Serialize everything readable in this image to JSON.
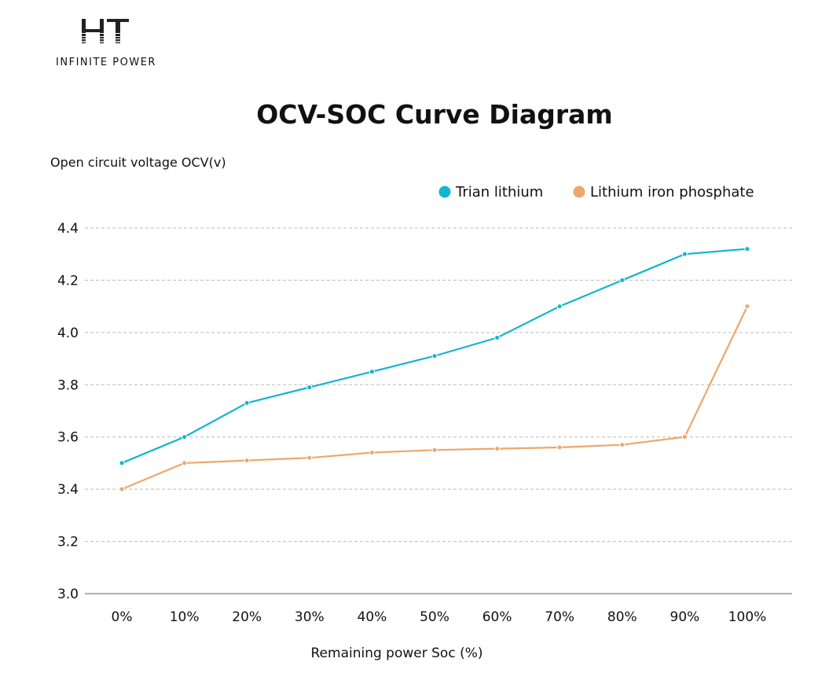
{
  "logo": {
    "mark": "HT",
    "tagline": "INFINITE POWER"
  },
  "chart_data": {
    "type": "line",
    "title": "OCV-SOC Curve Diagram",
    "ylabel": "Open circuit voltage OCV(v)",
    "xlabel": "Remaining power Soc (%)",
    "categories": [
      "0%",
      "10%",
      "20%",
      "30%",
      "40%",
      "50%",
      "60%",
      "70%",
      "80%",
      "90%",
      "100%"
    ],
    "yticks": [
      "3.0",
      "3.2",
      "3.4",
      "3.6",
      "3.8",
      "4.0",
      "4.2",
      "4.4"
    ],
    "ylim": [
      3.0,
      4.4
    ],
    "grid": "horizontal dashed",
    "legend_position": "top-right",
    "series": [
      {
        "name": "Trian lithium",
        "color": "#12b5d0",
        "values": [
          3.5,
          3.6,
          3.73,
          3.79,
          3.85,
          3.91,
          3.98,
          4.1,
          4.2,
          4.3,
          4.32
        ]
      },
      {
        "name": "Lithium iron phosphate",
        "color": "#eea76a",
        "values": [
          3.4,
          3.5,
          3.51,
          3.52,
          3.54,
          3.55,
          3.555,
          3.56,
          3.57,
          3.6,
          4.1
        ]
      }
    ]
  }
}
